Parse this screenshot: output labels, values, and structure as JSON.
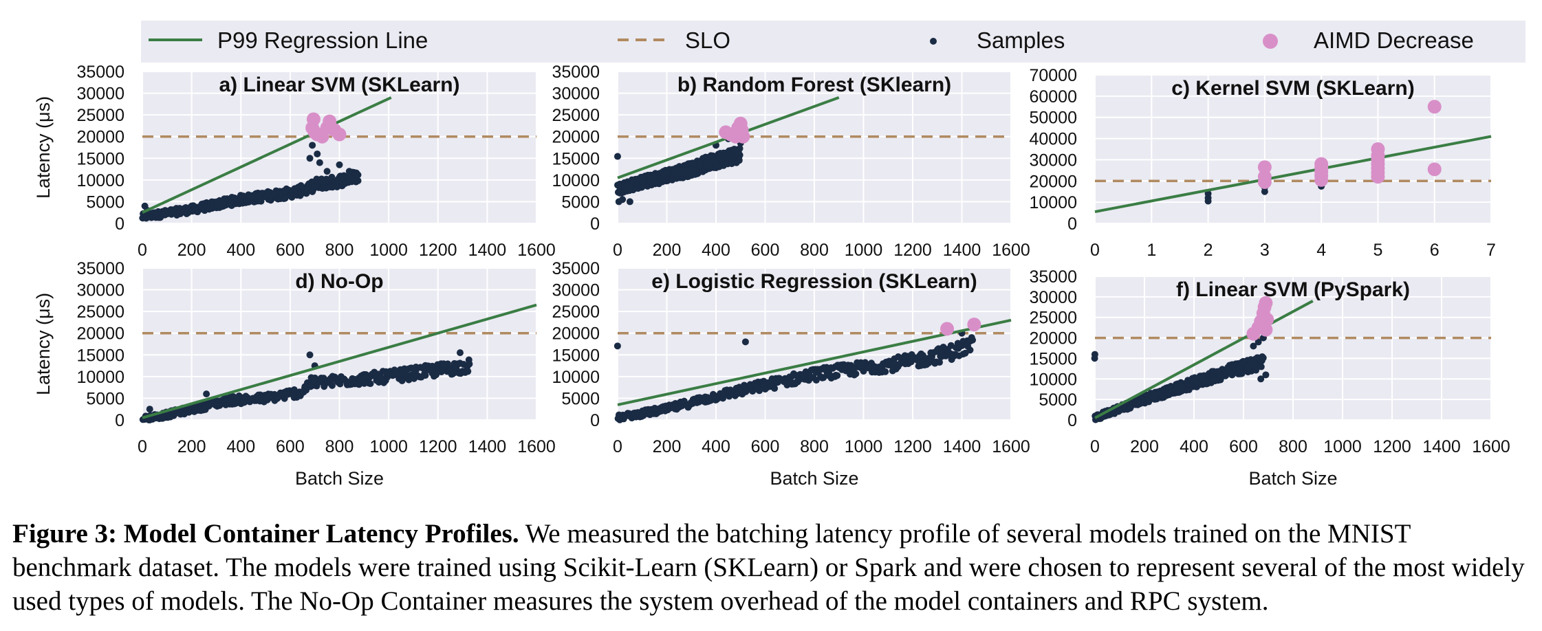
{
  "legend": {
    "regression": "P99 Regression Line",
    "slo": "SLO",
    "samples": "Samples",
    "aimd": "AIMD Decrease"
  },
  "colors": {
    "panel_bg": "#eaeaf2",
    "regression": "#3a7d44",
    "slo": "#b08a60",
    "samples": "#1a2b44",
    "aimd": "#d88fc8"
  },
  "caption": {
    "label": "Figure 3: Model Container Latency Profiles.",
    "text": " We measured the batching latency profile of several models trained on the MNIST benchmark dataset. The models were trained using Scikit-Learn (SKLearn) or Spark and were chosen to represent several of the most widely used types of models. The No-Op Container measures the system overhead of the model containers and RPC system."
  },
  "chart_data": [
    {
      "id": "a",
      "type": "scatter",
      "title": "a) Linear SVM (SKLearn)",
      "xlabel": "",
      "ylabel": "Latency (μs)",
      "xlim": [
        0,
        1600
      ],
      "ylim": [
        0,
        35000
      ],
      "xticks": [
        0,
        200,
        400,
        600,
        800,
        1000,
        1200,
        1400,
        1600
      ],
      "yticks": [
        0,
        5000,
        10000,
        15000,
        20000,
        25000,
        30000,
        35000
      ],
      "slo": 20000,
      "regression": [
        [
          0,
          2500
        ],
        [
          1010,
          29000
        ]
      ],
      "samples_trend": [
        [
          0,
          1500
        ],
        [
          200,
          3200
        ],
        [
          400,
          5500
        ],
        [
          600,
          7000
        ],
        [
          680,
          8000
        ],
        [
          700,
          9000
        ],
        [
          780,
          9500
        ],
        [
          880,
          11000
        ]
      ],
      "samples_outliers": [
        [
          10,
          4000
        ],
        [
          20,
          3000
        ],
        [
          680,
          15000
        ],
        [
          690,
          18000
        ],
        [
          700,
          20000
        ],
        [
          710,
          16000
        ],
        [
          720,
          14000
        ],
        [
          750,
          12000
        ],
        [
          800,
          13500
        ],
        [
          840,
          12000
        ]
      ],
      "aimd": [
        [
          690,
          22000
        ],
        [
          695,
          24000
        ],
        [
          700,
          21000
        ],
        [
          710,
          20500
        ],
        [
          730,
          20000
        ],
        [
          750,
          22000
        ],
        [
          760,
          23500
        ],
        [
          780,
          21500
        ],
        [
          800,
          20500
        ]
      ]
    },
    {
      "id": "b",
      "type": "scatter",
      "title": "b) Random Forest (SKlearn)",
      "xlabel": "",
      "ylabel": "",
      "xlim": [
        0,
        1600
      ],
      "ylim": [
        0,
        35000
      ],
      "xticks": [
        0,
        200,
        400,
        600,
        800,
        1000,
        1200,
        1400,
        1600
      ],
      "yticks": [
        0,
        5000,
        10000,
        15000,
        20000,
        25000,
        30000,
        35000
      ],
      "slo": 20000,
      "regression": [
        [
          0,
          10500
        ],
        [
          900,
          29000
        ]
      ],
      "samples_trend": [
        [
          0,
          8000
        ],
        [
          100,
          9500
        ],
        [
          200,
          11000
        ],
        [
          300,
          12500
        ],
        [
          400,
          14500
        ],
        [
          500,
          16000
        ]
      ],
      "samples_outliers": [
        [
          5,
          5000
        ],
        [
          20,
          5500
        ],
        [
          50,
          5000
        ],
        [
          400,
          18000
        ],
        [
          450,
          19500
        ],
        [
          480,
          17000
        ],
        [
          500,
          18500
        ]
      ],
      "aimd": [
        [
          440,
          21000
        ],
        [
          460,
          20500
        ],
        [
          480,
          20000
        ],
        [
          490,
          22000
        ],
        [
          500,
          23000
        ],
        [
          505,
          21500
        ],
        [
          510,
          20000
        ]
      ]
    },
    {
      "id": "c",
      "type": "scatter",
      "title": "c) Kernel SVM (SKLearn)",
      "xlabel": "",
      "ylabel": "",
      "xlim": [
        0,
        7
      ],
      "ylim": [
        0,
        70000
      ],
      "xticks": [
        0,
        1,
        2,
        3,
        4,
        5,
        6,
        7
      ],
      "yticks": [
        0,
        10000,
        20000,
        30000,
        40000,
        50000,
        60000,
        70000
      ],
      "slo": 20000,
      "regression": [
        [
          0,
          5500
        ],
        [
          7,
          41000
        ]
      ],
      "samples_trend": [],
      "samples_outliers": [
        [
          2,
          10500
        ],
        [
          2,
          12000
        ],
        [
          2,
          14000
        ],
        [
          3,
          15000
        ],
        [
          3,
          17000
        ],
        [
          4,
          17500
        ],
        [
          4,
          19000
        ],
        [
          5,
          21000
        ]
      ],
      "aimd": [
        [
          3,
          19500
        ],
        [
          3,
          22000
        ],
        [
          3,
          26500
        ],
        [
          4,
          20500
        ],
        [
          4,
          22500
        ],
        [
          4,
          24500
        ],
        [
          4,
          26500
        ],
        [
          4,
          28000
        ],
        [
          5,
          22000
        ],
        [
          5,
          24000
        ],
        [
          5,
          26000
        ],
        [
          5,
          28000
        ],
        [
          5,
          30000
        ],
        [
          5,
          32000
        ],
        [
          5,
          35000
        ],
        [
          6,
          25500
        ],
        [
          6,
          55000
        ]
      ]
    },
    {
      "id": "d",
      "type": "scatter",
      "title": "d) No-Op",
      "xlabel": "Batch Size",
      "ylabel": "Latency (μs)",
      "xlim": [
        0,
        1600
      ],
      "ylim": [
        0,
        35000
      ],
      "xticks": [
        0,
        200,
        400,
        600,
        800,
        1000,
        1200,
        1400,
        1600
      ],
      "yticks": [
        0,
        5000,
        10000,
        15000,
        20000,
        25000,
        30000,
        35000
      ],
      "slo": 20000,
      "regression": [
        [
          0,
          500
        ],
        [
          1600,
          26500
        ]
      ],
      "samples_trend": [
        [
          0,
          300
        ],
        [
          100,
          1200
        ],
        [
          200,
          2500
        ],
        [
          350,
          4500
        ],
        [
          500,
          5000
        ],
        [
          650,
          6500
        ],
        [
          680,
          8500
        ],
        [
          800,
          9000
        ],
        [
          1000,
          10000
        ],
        [
          1200,
          11500
        ],
        [
          1330,
          12500
        ]
      ],
      "samples_outliers": [
        [
          30,
          2500
        ],
        [
          260,
          6000
        ],
        [
          680,
          15000
        ],
        [
          700,
          12500
        ],
        [
          1290,
          15500
        ]
      ],
      "aimd": []
    },
    {
      "id": "e",
      "type": "scatter",
      "title": "e) Logistic Regression (SKLearn)",
      "xlabel": "Batch Size",
      "ylabel": "",
      "xlim": [
        0,
        1600
      ],
      "ylim": [
        0,
        35000
      ],
      "xticks": [
        0,
        200,
        400,
        600,
        800,
        1000,
        1200,
        1400,
        1600
      ],
      "yticks": [
        0,
        5000,
        10000,
        15000,
        20000,
        25000,
        30000,
        35000
      ],
      "slo": 20000,
      "regression": [
        [
          0,
          3500
        ],
        [
          1600,
          23000
        ]
      ],
      "samples_trend": [
        [
          0,
          500
        ],
        [
          200,
          2500
        ],
        [
          400,
          5500
        ],
        [
          600,
          8000
        ],
        [
          800,
          10500
        ],
        [
          1000,
          12000
        ],
        [
          1200,
          13500
        ],
        [
          1350,
          15500
        ],
        [
          1450,
          17500
        ]
      ],
      "samples_outliers": [
        [
          520,
          18000
        ],
        [
          1400,
          20000
        ]
      ],
      "aimd": [
        [
          1340,
          21000
        ],
        [
          1450,
          22000
        ]
      ]
    },
    {
      "id": "f",
      "type": "scatter",
      "title": "f) Linear SVM (PySpark)",
      "xlabel": "Batch Size",
      "ylabel": "",
      "xlim": [
        0,
        1600
      ],
      "ylim": [
        0,
        35000
      ],
      "xticks": [
        0,
        200,
        400,
        600,
        800,
        1000,
        1200,
        1400,
        1600
      ],
      "yticks": [
        0,
        5000,
        10000,
        15000,
        20000,
        25000,
        30000,
        35000
      ],
      "slo": 20000,
      "regression": [
        [
          0,
          500
        ],
        [
          880,
          29000
        ]
      ],
      "samples_trend": [
        [
          0,
          500
        ],
        [
          200,
          5000
        ],
        [
          400,
          9000
        ],
        [
          550,
          12000
        ],
        [
          640,
          13500
        ],
        [
          680,
          14500
        ]
      ],
      "samples_outliers": [
        [
          640,
          18000
        ],
        [
          660,
          19000
        ],
        [
          680,
          20000
        ],
        [
          670,
          10000
        ],
        [
          690,
          11000
        ]
      ],
      "aimd": [
        [
          640,
          21000
        ],
        [
          660,
          22500
        ],
        [
          670,
          24000
        ],
        [
          680,
          26000
        ],
        [
          685,
          27500
        ],
        [
          690,
          28500
        ],
        [
          690,
          22000
        ],
        [
          695,
          24500
        ]
      ]
    }
  ]
}
